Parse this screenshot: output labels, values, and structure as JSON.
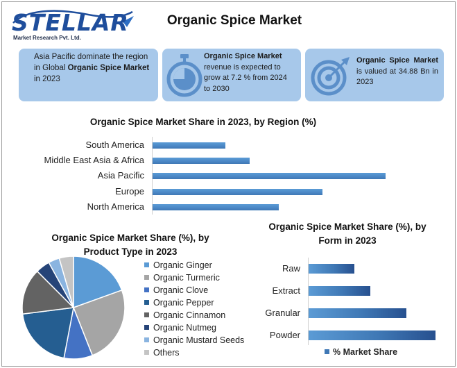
{
  "logo": {
    "wordmark": "STELLAR",
    "subtitle": "Market Research Pvt. Ltd."
  },
  "title": "Organic Spice Market",
  "info_boxes": [
    {
      "pre": "Asia Pacific dominate the region in Global ",
      "bold": "Organic Spice Market",
      "post": " in 2023",
      "icon": "none"
    },
    {
      "bold": "Organic Spice Market",
      "post": " revenue is expected to grow at 7.2 % from 2024 to 2030",
      "icon": "stopwatch-icon"
    },
    {
      "bold": "Organic Spice Market",
      "post": " is valued at 34.88 Bn in 2023",
      "icon": "target-icon"
    }
  ],
  "colors": {
    "box": "#a7c8ea",
    "bar": "#4a87c5",
    "dark_blue": "#1f4e9c"
  },
  "chart_data": [
    {
      "type": "bar",
      "orientation": "horizontal",
      "title": "Organic Spice Market Share in 2023, by Region (%)",
      "categories": [
        "South America",
        "Middle East Asia & Africa",
        "Asia Pacific",
        "Europe",
        "North America"
      ],
      "values": [
        15,
        20,
        48,
        35,
        26
      ],
      "xlim": [
        0,
        50
      ],
      "grid": false
    },
    {
      "type": "pie",
      "title_line1": "Organic Spice Market Share (%), by",
      "title_line2": "Product Type in 2023",
      "labels": [
        "Organic Ginger",
        "Organic Turmeric",
        "Organic Clove",
        "Organic Pepper",
        "Organic Cinnamon",
        "Organic Nutmeg",
        "Organic Mustard Seeds",
        "Others"
      ],
      "values": [
        19.5,
        24.5,
        9,
        20,
        14.5,
        4.5,
        3.5,
        4.5
      ],
      "colors": [
        "#5b9bd5",
        "#a5a5a5",
        "#4472c4",
        "#255e91",
        "#636363",
        "#264478",
        "#8ab4e0",
        "#c4c4c4"
      ],
      "legend": "right"
    },
    {
      "type": "bar",
      "orientation": "horizontal",
      "title_line1": "Organic Spice Market Share (%), by",
      "title_line2": "Form in 2023",
      "categories": [
        "Raw",
        "Extract",
        "Granular",
        "Powder"
      ],
      "values": [
        14,
        19,
        30,
        39
      ],
      "xlim": [
        0,
        40
      ],
      "series_name": "% Market Share",
      "legend": "bottom",
      "grid": false
    }
  ]
}
